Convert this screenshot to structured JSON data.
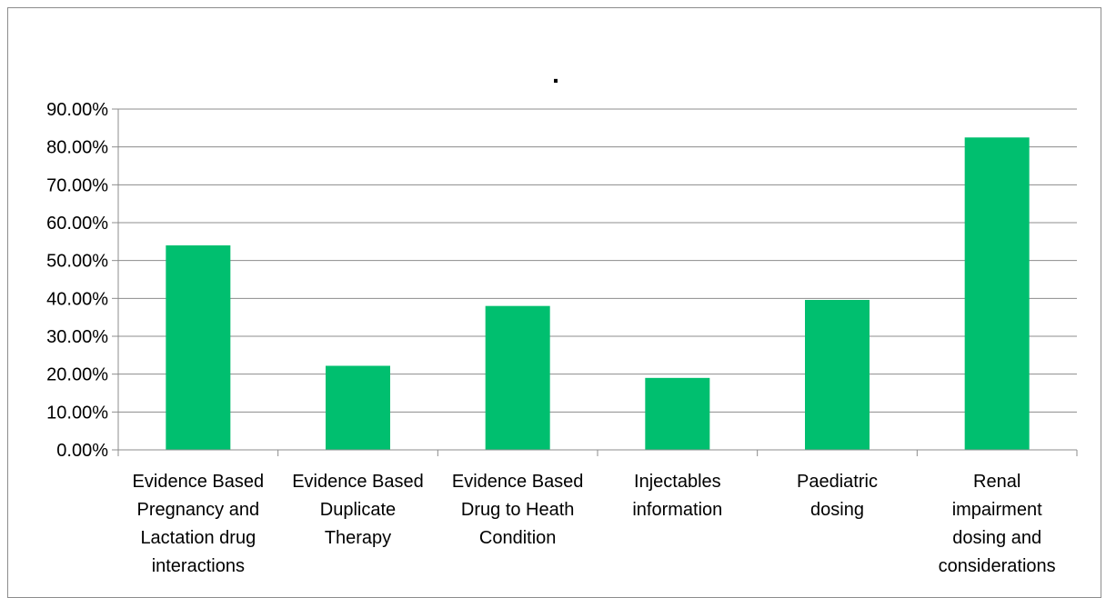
{
  "chart_data": {
    "type": "bar",
    "title": ".",
    "xlabel": "",
    "ylabel": "",
    "categories": [
      [
        "Evidence Based",
        "Pregnancy and",
        "Lactation drug",
        "interactions"
      ],
      [
        "Evidence Based",
        "Duplicate",
        "Therapy"
      ],
      [
        "Evidence Based",
        "Drug to Heath",
        "Condition"
      ],
      [
        "Injectables",
        "information"
      ],
      [
        "Paediatric",
        "dosing"
      ],
      [
        "Renal",
        "impairment",
        "dosing and",
        "considerations"
      ]
    ],
    "values": [
      54.0,
      22.2,
      38.0,
      19.0,
      39.6,
      82.5
    ],
    "ylim": [
      0,
      90
    ],
    "yticks": [
      0,
      10,
      20,
      30,
      40,
      50,
      60,
      70,
      80,
      90
    ],
    "ytick_labels": [
      "0.00%",
      "10.00%",
      "20.00%",
      "30.00%",
      "40.00%",
      "50.00%",
      "60.00%",
      "70.00%",
      "80.00%",
      "90.00%"
    ],
    "grid": true,
    "legend": "none",
    "bar_color": "#00BF6F",
    "grid_color": "#8c8c8c"
  }
}
